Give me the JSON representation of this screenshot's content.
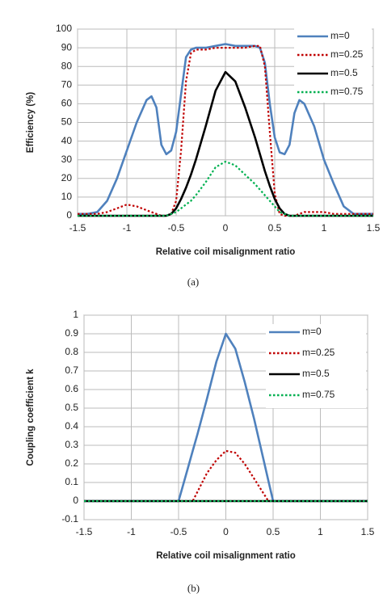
{
  "chart_data": [
    {
      "type": "line",
      "caption": "(a)",
      "xlabel": "Relative coil misalignment ratio",
      "ylabel": "Efficiency (%)",
      "xlim": [
        -1.5,
        1.5
      ],
      "ylim": [
        0,
        100
      ],
      "xticks": [
        -1.5,
        -1,
        -0.5,
        0,
        0.5,
        1,
        1.5
      ],
      "yticks": [
        0,
        10,
        20,
        30,
        40,
        50,
        60,
        70,
        80,
        90,
        100
      ],
      "grid": true,
      "legend": "upper right",
      "x": [
        -1.5,
        -1.4,
        -1.3,
        -1.2,
        -1.1,
        -1.0,
        -0.9,
        -0.8,
        -0.75,
        -0.7,
        -0.65,
        -0.6,
        -0.55,
        -0.5,
        -0.45,
        -0.4,
        -0.35,
        -0.3,
        -0.2,
        -0.1,
        0,
        0.1,
        0.2,
        0.3,
        0.35,
        0.4,
        0.45,
        0.5,
        0.55,
        0.6,
        0.65,
        0.7,
        0.75,
        0.8,
        0.9,
        1.0,
        1.1,
        1.2,
        1.3,
        1.4,
        1.5
      ],
      "series": [
        {
          "name": "m=0",
          "color": "#4f81bd",
          "dash": "solid",
          "values": [
            1,
            1,
            2,
            8,
            20,
            35,
            50,
            62,
            64,
            58,
            38,
            33,
            35,
            45,
            65,
            85,
            89,
            90,
            90,
            91,
            92,
            91,
            91,
            91,
            90,
            82,
            60,
            42,
            34,
            33,
            38,
            55,
            62,
            60,
            48,
            30,
            17,
            5,
            1,
            1,
            1
          ]
        },
        {
          "name": "m=0.25",
          "color": "#c00000",
          "dash": "dotted",
          "values": [
            1,
            1,
            1,
            2,
            4,
            6,
            5,
            3,
            2,
            1,
            0,
            0,
            1,
            8,
            35,
            72,
            87,
            89,
            89,
            90,
            90,
            90,
            90,
            91,
            91,
            80,
            45,
            12,
            1,
            0,
            0,
            0,
            1,
            2,
            2,
            2,
            1,
            1,
            1,
            1,
            1
          ]
        },
        {
          "name": "m=0.5",
          "color": "#000000",
          "dash": "solid",
          "values": [
            0,
            0,
            0,
            0,
            0,
            0,
            0,
            0,
            0,
            0,
            0,
            0,
            1,
            4,
            9,
            15,
            22,
            30,
            48,
            67,
            77,
            72,
            58,
            42,
            33,
            24,
            16,
            9,
            4,
            1,
            0,
            0,
            0,
            0,
            0,
            0,
            0,
            0,
            0,
            0,
            0
          ]
        },
        {
          "name": "m=0.75",
          "color": "#00b050",
          "dash": "dotted",
          "values": [
            0,
            0,
            0,
            0,
            0,
            0,
            0,
            0,
            0,
            0,
            0,
            0,
            1,
            2,
            4,
            6,
            8,
            11,
            18,
            26,
            29,
            27,
            22,
            17,
            14,
            11,
            8,
            5,
            2,
            1,
            0,
            0,
            0,
            0,
            0,
            0,
            0,
            0,
            0,
            0,
            0
          ]
        }
      ]
    },
    {
      "type": "line",
      "caption": "(b)",
      "xlabel": "Relative coil misalignment ratio",
      "ylabel": "Coupling coefficient k",
      "xlim": [
        -1.5,
        1.5
      ],
      "ylim": [
        -0.1,
        1
      ],
      "xticks": [
        -1.5,
        -1,
        -0.5,
        0,
        0.5,
        1,
        1.5
      ],
      "yticks": [
        -0.1,
        0,
        0.1,
        0.2,
        0.3,
        0.4,
        0.5,
        0.6,
        0.7,
        0.8,
        0.9,
        1
      ],
      "grid": true,
      "legend": "upper right",
      "x": [
        -1.5,
        -0.5,
        -0.4,
        -0.35,
        -0.3,
        -0.2,
        -0.1,
        0,
        0.1,
        0.2,
        0.3,
        0.4,
        0.45,
        0.5,
        1.5
      ],
      "series": [
        {
          "name": "m=0",
          "color": "#4f81bd",
          "dash": "solid",
          "values": [
            0,
            0,
            0.18,
            0.27,
            0.36,
            0.55,
            0.75,
            0.9,
            0.82,
            0.64,
            0.44,
            0.22,
            0.11,
            0,
            0
          ]
        },
        {
          "name": "m=0.25",
          "color": "#c00000",
          "dash": "dotted",
          "values": [
            0,
            0,
            0,
            0,
            0.05,
            0.15,
            0.22,
            0.27,
            0.26,
            0.2,
            0.12,
            0.04,
            0,
            0,
            0
          ]
        },
        {
          "name": "m=0.5",
          "color": "#000000",
          "dash": "solid",
          "values": [
            0,
            0,
            0,
            0,
            0,
            0,
            0,
            0,
            0,
            0,
            0,
            0,
            0,
            0,
            0
          ]
        },
        {
          "name": "m=0.75",
          "color": "#00b050",
          "dash": "dotted",
          "values": [
            0,
            0,
            0,
            0,
            0,
            0,
            0,
            0,
            0,
            0,
            0,
            0,
            0,
            0,
            0
          ]
        }
      ]
    }
  ]
}
